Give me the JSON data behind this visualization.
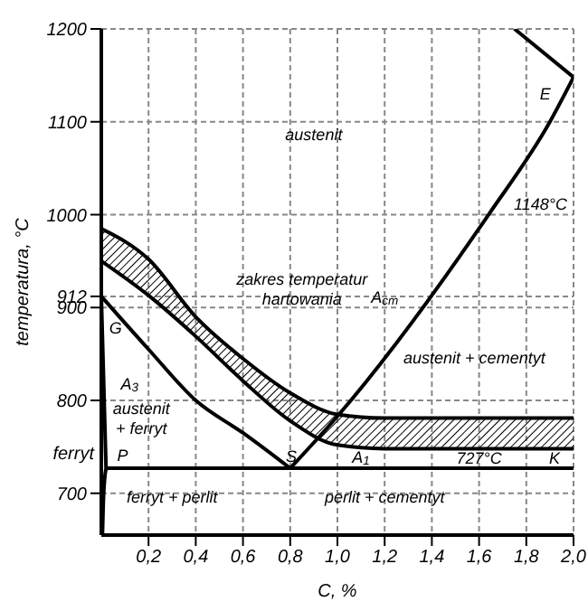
{
  "chart_data": {
    "type": "line",
    "xlabel": "C, %",
    "ylabel": "temperatura, °C",
    "xlim": [
      0,
      2.0
    ],
    "ylim": [
      655,
      1200
    ],
    "xticks": [
      {
        "value": 0.2,
        "label": "0,2"
      },
      {
        "value": 0.4,
        "label": "0,4"
      },
      {
        "value": 0.6,
        "label": "0,6"
      },
      {
        "value": 0.8,
        "label": "0,8"
      },
      {
        "value": 1.0,
        "label": "1,0"
      },
      {
        "value": 1.2,
        "label": "1,2"
      },
      {
        "value": 1.4,
        "label": "1,4"
      },
      {
        "value": 1.6,
        "label": "1,6"
      },
      {
        "value": 1.8,
        "label": "1,8"
      },
      {
        "value": 2.0,
        "label": "2,0"
      }
    ],
    "yticks": [
      700,
      800,
      900,
      912,
      1000,
      1100,
      1200
    ],
    "grid": true,
    "marker": "none",
    "line_style": "solid",
    "series": [
      {
        "color": "#000000",
        "x": [
          0,
          0.2,
          0.4,
          0.6,
          0.8,
          1.0,
          1.2,
          2.0
        ],
        "values": [
          950,
          913,
          869,
          821,
          778,
          752,
          748,
          748
        ]
      },
      {
        "color": "#000000",
        "x": [
          0,
          0.2,
          0.4,
          0.6,
          0.8,
          1.0,
          1.2,
          2.0
        ],
        "values": [
          985,
          952,
          890,
          845,
          808,
          785,
          781,
          781
        ],
        "lower": [
          950,
          913,
          869,
          821,
          778,
          752,
          748,
          748
        ],
        "upper": [
          985,
          952,
          890,
          845,
          808,
          785,
          781,
          781
        ]
      },
      {
        "color": "#000000",
        "x": [
          0,
          0.2,
          0.4,
          0.6,
          0.8
        ],
        "values": [
          912,
          855,
          800,
          765,
          727
        ]
      },
      {
        "color": "#000000",
        "x": [
          0,
          0.02
        ],
        "values": [
          912,
          727
        ]
      },
      {
        "color": "#000000",
        "x": [
          0.005,
          0.01,
          0.02
        ],
        "values": [
          657,
          700,
          727
        ]
      },
      {
        "color": "#000000",
        "x": [
          0.02,
          2.0
        ],
        "values": [
          727,
          727
        ]
      },
      {
        "color": "#000000",
        "x": [
          0.8,
          1.0,
          1.64,
          1.9,
          2.0
        ],
        "values": [
          727,
          783,
          1000,
          1100,
          1148
        ]
      },
      {
        "color": "#000000",
        "x": [
          1.75,
          2.0
        ],
        "values": [
          1200,
          1148
        ]
      }
    ],
    "annotations": [
      "austenit",
      "zakres temperatur\nhartowania",
      "A$_{cm}$",
      "austenit + cementyt",
      "E",
      "1148°C",
      "G",
      "A$_{3}$",
      "austenit\n+ ferryt",
      "ferryt",
      "P",
      "S",
      "A$_{1}$",
      "727°C",
      "K",
      "ferryt + perlit",
      "perlit + cementyt"
    ]
  }
}
